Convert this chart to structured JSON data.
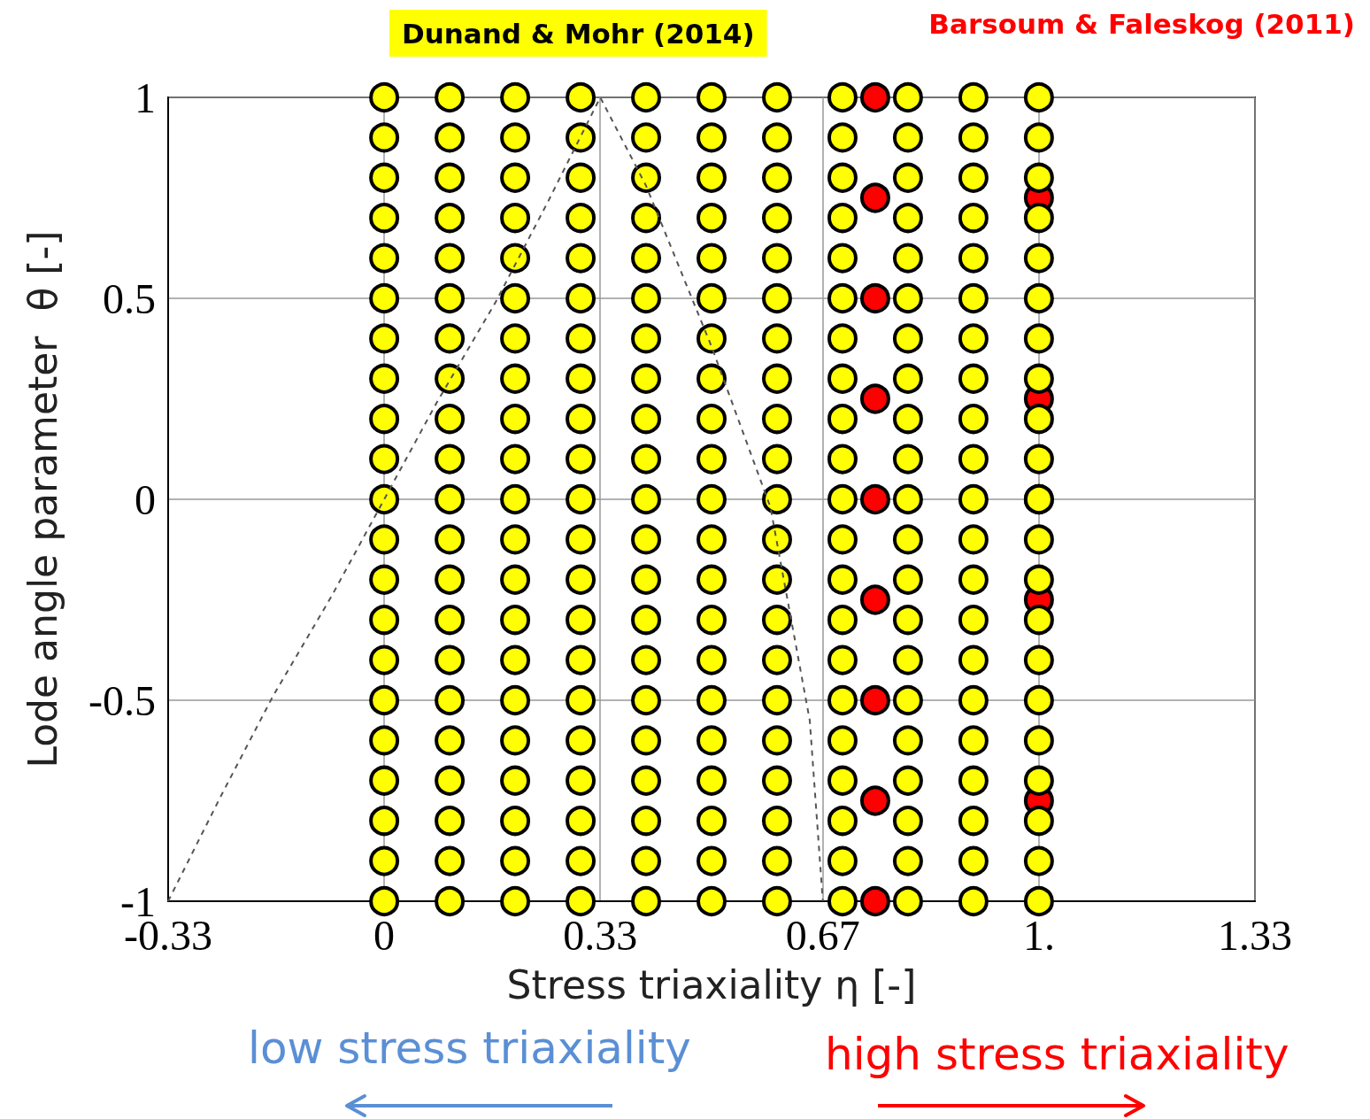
{
  "chart_data": {
    "type": "scatter",
    "xlabel": "Stress triaxiality η [-]",
    "ylabel": "Lode angle parameter  θ [-]",
    "xlim": [
      -0.33,
      1.33
    ],
    "xticks": [
      -0.33,
      0,
      0.33,
      0.67,
      {
        "value": 1,
        "label": "1."
      },
      1.33
    ],
    "ylim": [
      -1,
      1
    ],
    "yticks": [
      -1,
      -0.5,
      0,
      0.5,
      1
    ],
    "grid": true,
    "legend": "top",
    "marker": "circle",
    "series": [
      {
        "name": "Dunand & Mohr (2014)",
        "color": "#ffff00",
        "x": [
          0,
          0,
          0,
          0,
          0,
          0,
          0,
          0,
          0,
          0,
          0,
          0,
          0,
          0,
          0,
          0,
          0,
          0,
          0,
          0,
          0,
          0.1,
          0.1,
          0.1,
          0.1,
          0.1,
          0.1,
          0.1,
          0.1,
          0.1,
          0.1,
          0.1,
          0.1,
          0.1,
          0.1,
          0.1,
          0.1,
          0.1,
          0.1,
          0.1,
          0.1,
          0.1,
          0.2,
          0.2,
          0.2,
          0.2,
          0.2,
          0.2,
          0.2,
          0.2,
          0.2,
          0.2,
          0.2,
          0.2,
          0.2,
          0.2,
          0.2,
          0.2,
          0.2,
          0.2,
          0.2,
          0.2,
          0.2,
          0.3,
          0.3,
          0.3,
          0.3,
          0.3,
          0.3,
          0.3,
          0.3,
          0.3,
          0.3,
          0.3,
          0.3,
          0.3,
          0.3,
          0.3,
          0.3,
          0.3,
          0.3,
          0.3,
          0.3,
          0.3,
          0.4,
          0.4,
          0.4,
          0.4,
          0.4,
          0.4,
          0.4,
          0.4,
          0.4,
          0.4,
          0.4,
          0.4,
          0.4,
          0.4,
          0.4,
          0.4,
          0.4,
          0.4,
          0.4,
          0.4,
          0.4,
          0.5,
          0.5,
          0.5,
          0.5,
          0.5,
          0.5,
          0.5,
          0.5,
          0.5,
          0.5,
          0.5,
          0.5,
          0.5,
          0.5,
          0.5,
          0.5,
          0.5,
          0.5,
          0.5,
          0.5,
          0.5,
          0.6,
          0.6,
          0.6,
          0.6,
          0.6,
          0.6,
          0.6,
          0.6,
          0.6,
          0.6,
          0.6,
          0.6,
          0.6,
          0.6,
          0.6,
          0.6,
          0.6,
          0.6,
          0.6,
          0.6,
          0.6,
          0.7,
          0.7,
          0.7,
          0.7,
          0.7,
          0.7,
          0.7,
          0.7,
          0.7,
          0.7,
          0.7,
          0.7,
          0.7,
          0.7,
          0.7,
          0.7,
          0.7,
          0.7,
          0.7,
          0.7,
          0.7,
          0.8,
          0.8,
          0.8,
          0.8,
          0.8,
          0.8,
          0.8,
          0.8,
          0.8,
          0.8,
          0.8,
          0.8,
          0.8,
          0.8,
          0.8,
          0.8,
          0.8,
          0.8,
          0.8,
          0.8,
          0.8,
          0.9,
          0.9,
          0.9,
          0.9,
          0.9,
          0.9,
          0.9,
          0.9,
          0.9,
          0.9,
          0.9,
          0.9,
          0.9,
          0.9,
          0.9,
          0.9,
          0.9,
          0.9,
          0.9,
          0.9,
          0.9,
          1,
          1,
          1,
          1,
          1,
          1,
          1,
          1,
          1,
          1,
          1,
          1,
          1,
          1,
          1,
          1,
          1,
          1,
          1,
          1,
          1
        ],
        "values": [
          -1,
          -0.9,
          -0.8,
          -0.7,
          -0.6,
          -0.5,
          -0.4,
          -0.3,
          -0.2,
          -0.1,
          0,
          0.1,
          0.2,
          0.3,
          0.4,
          0.5,
          0.6,
          0.7,
          0.8,
          0.9,
          1,
          -1,
          -0.9,
          -0.8,
          -0.7,
          -0.6,
          -0.5,
          -0.4,
          -0.3,
          -0.2,
          -0.1,
          0,
          0.1,
          0.2,
          0.3,
          0.4,
          0.5,
          0.6,
          0.7,
          0.8,
          0.9,
          1,
          -1,
          -0.9,
          -0.8,
          -0.7,
          -0.6,
          -0.5,
          -0.4,
          -0.3,
          -0.2,
          -0.1,
          0,
          0.1,
          0.2,
          0.3,
          0.4,
          0.5,
          0.6,
          0.7,
          0.8,
          0.9,
          1,
          -1,
          -0.9,
          -0.8,
          -0.7,
          -0.6,
          -0.5,
          -0.4,
          -0.3,
          -0.2,
          -0.1,
          0,
          0.1,
          0.2,
          0.3,
          0.4,
          0.5,
          0.6,
          0.7,
          0.8,
          0.9,
          1,
          -1,
          -0.9,
          -0.8,
          -0.7,
          -0.6,
          -0.5,
          -0.4,
          -0.3,
          -0.2,
          -0.1,
          0,
          0.1,
          0.2,
          0.3,
          0.4,
          0.5,
          0.6,
          0.7,
          0.8,
          0.9,
          1,
          -1,
          -0.9,
          -0.8,
          -0.7,
          -0.6,
          -0.5,
          -0.4,
          -0.3,
          -0.2,
          -0.1,
          0,
          0.1,
          0.2,
          0.3,
          0.4,
          0.5,
          0.6,
          0.7,
          0.8,
          0.9,
          1,
          -1,
          -0.9,
          -0.8,
          -0.7,
          -0.6,
          -0.5,
          -0.4,
          -0.3,
          -0.2,
          -0.1,
          0,
          0.1,
          0.2,
          0.3,
          0.4,
          0.5,
          0.6,
          0.7,
          0.8,
          0.9,
          1,
          -1,
          -0.9,
          -0.8,
          -0.7,
          -0.6,
          -0.5,
          -0.4,
          -0.3,
          -0.2,
          -0.1,
          0,
          0.1,
          0.2,
          0.3,
          0.4,
          0.5,
          0.6,
          0.7,
          0.8,
          0.9,
          1,
          -1,
          -0.9,
          -0.8,
          -0.7,
          -0.6,
          -0.5,
          -0.4,
          -0.3,
          -0.2,
          -0.1,
          0,
          0.1,
          0.2,
          0.3,
          0.4,
          0.5,
          0.6,
          0.7,
          0.8,
          0.9,
          1,
          -1,
          -0.9,
          -0.8,
          -0.7,
          -0.6,
          -0.5,
          -0.4,
          -0.3,
          -0.2,
          -0.1,
          0,
          0.1,
          0.2,
          0.3,
          0.4,
          0.5,
          0.6,
          0.7,
          0.8,
          0.9,
          1,
          -1,
          -0.9,
          -0.8,
          -0.7,
          -0.6,
          -0.5,
          -0.4,
          -0.3,
          -0.2,
          -0.1,
          0,
          0.1,
          0.2,
          0.3,
          0.4,
          0.5,
          0.6,
          0.7,
          0.8,
          0.9,
          1
        ]
      },
      {
        "name": "Barsoum & Faleskog (2011)",
        "color": "#ff0000",
        "x": [
          0.75,
          0.75,
          0.75,
          0.75,
          0.75,
          0.75,
          0.75,
          0.75,
          0.75,
          1,
          1,
          1,
          1,
          1
        ],
        "values": [
          -1,
          -0.75,
          -0.5,
          -0.25,
          0,
          0.25,
          0.5,
          0.75,
          1,
          -0.75,
          -0.25,
          0,
          0.25,
          0.75
        ]
      },
      {
        "type": "line",
        "color": "#555555",
        "line_style": "dashed",
        "marker": "none",
        "x": [
          -0.33,
          -0.25,
          -0.17,
          -0.08,
          0,
          0.08,
          0.17,
          0.25,
          0.33,
          0.4,
          0.5,
          0.59,
          0.65,
          0.67
        ],
        "values": [
          -1,
          -0.74,
          -0.49,
          -0.24,
          0,
          0.24,
          0.49,
          0.74,
          1,
          0.78,
          0.38,
          -0.02,
          -0.55,
          -1
        ]
      }
    ],
    "annotations": [
      "low stress triaxiality",
      "high stress triaxiality"
    ]
  }
}
